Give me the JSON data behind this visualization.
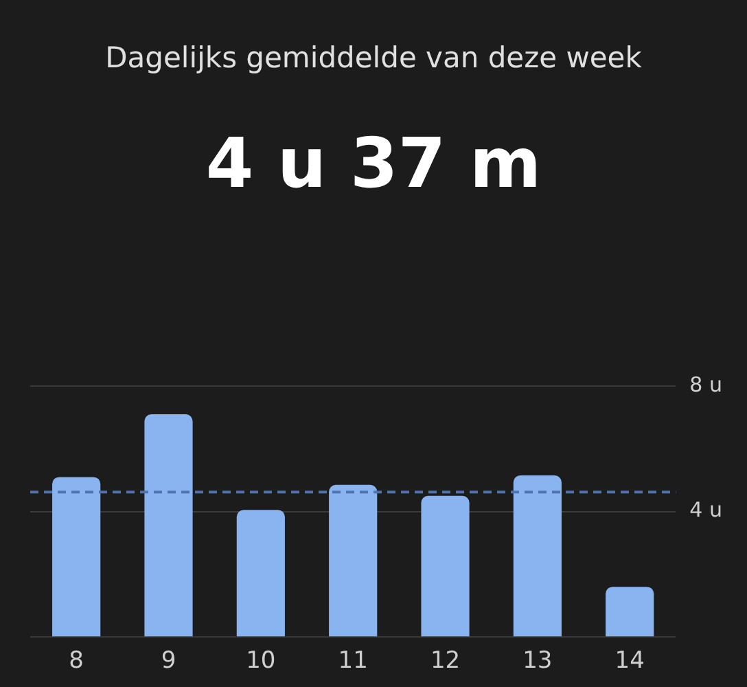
{
  "chart_data": {
    "type": "bar",
    "title": "Dagelijks gemiddelde van deze week",
    "subtitle": "4 u 37 m",
    "categories": [
      "8",
      "9",
      "10",
      "11",
      "12",
      "13",
      "14"
    ],
    "values": [
      5.1,
      7.1,
      4.05,
      4.85,
      4.5,
      5.15,
      1.6
    ],
    "color": "#8ab4f0",
    "ylim": [
      0,
      8
    ],
    "yticks": [
      {
        "value": 0,
        "label": null
      },
      {
        "value": 4,
        "label": "4 u"
      },
      {
        "value": 8,
        "label": "8 u"
      }
    ],
    "grid": "y",
    "legend": false,
    "ref_lines": [
      {
        "axis": "y",
        "value": 4.62,
        "color": "#4f74ad",
        "line_style": "dashed"
      }
    ]
  }
}
